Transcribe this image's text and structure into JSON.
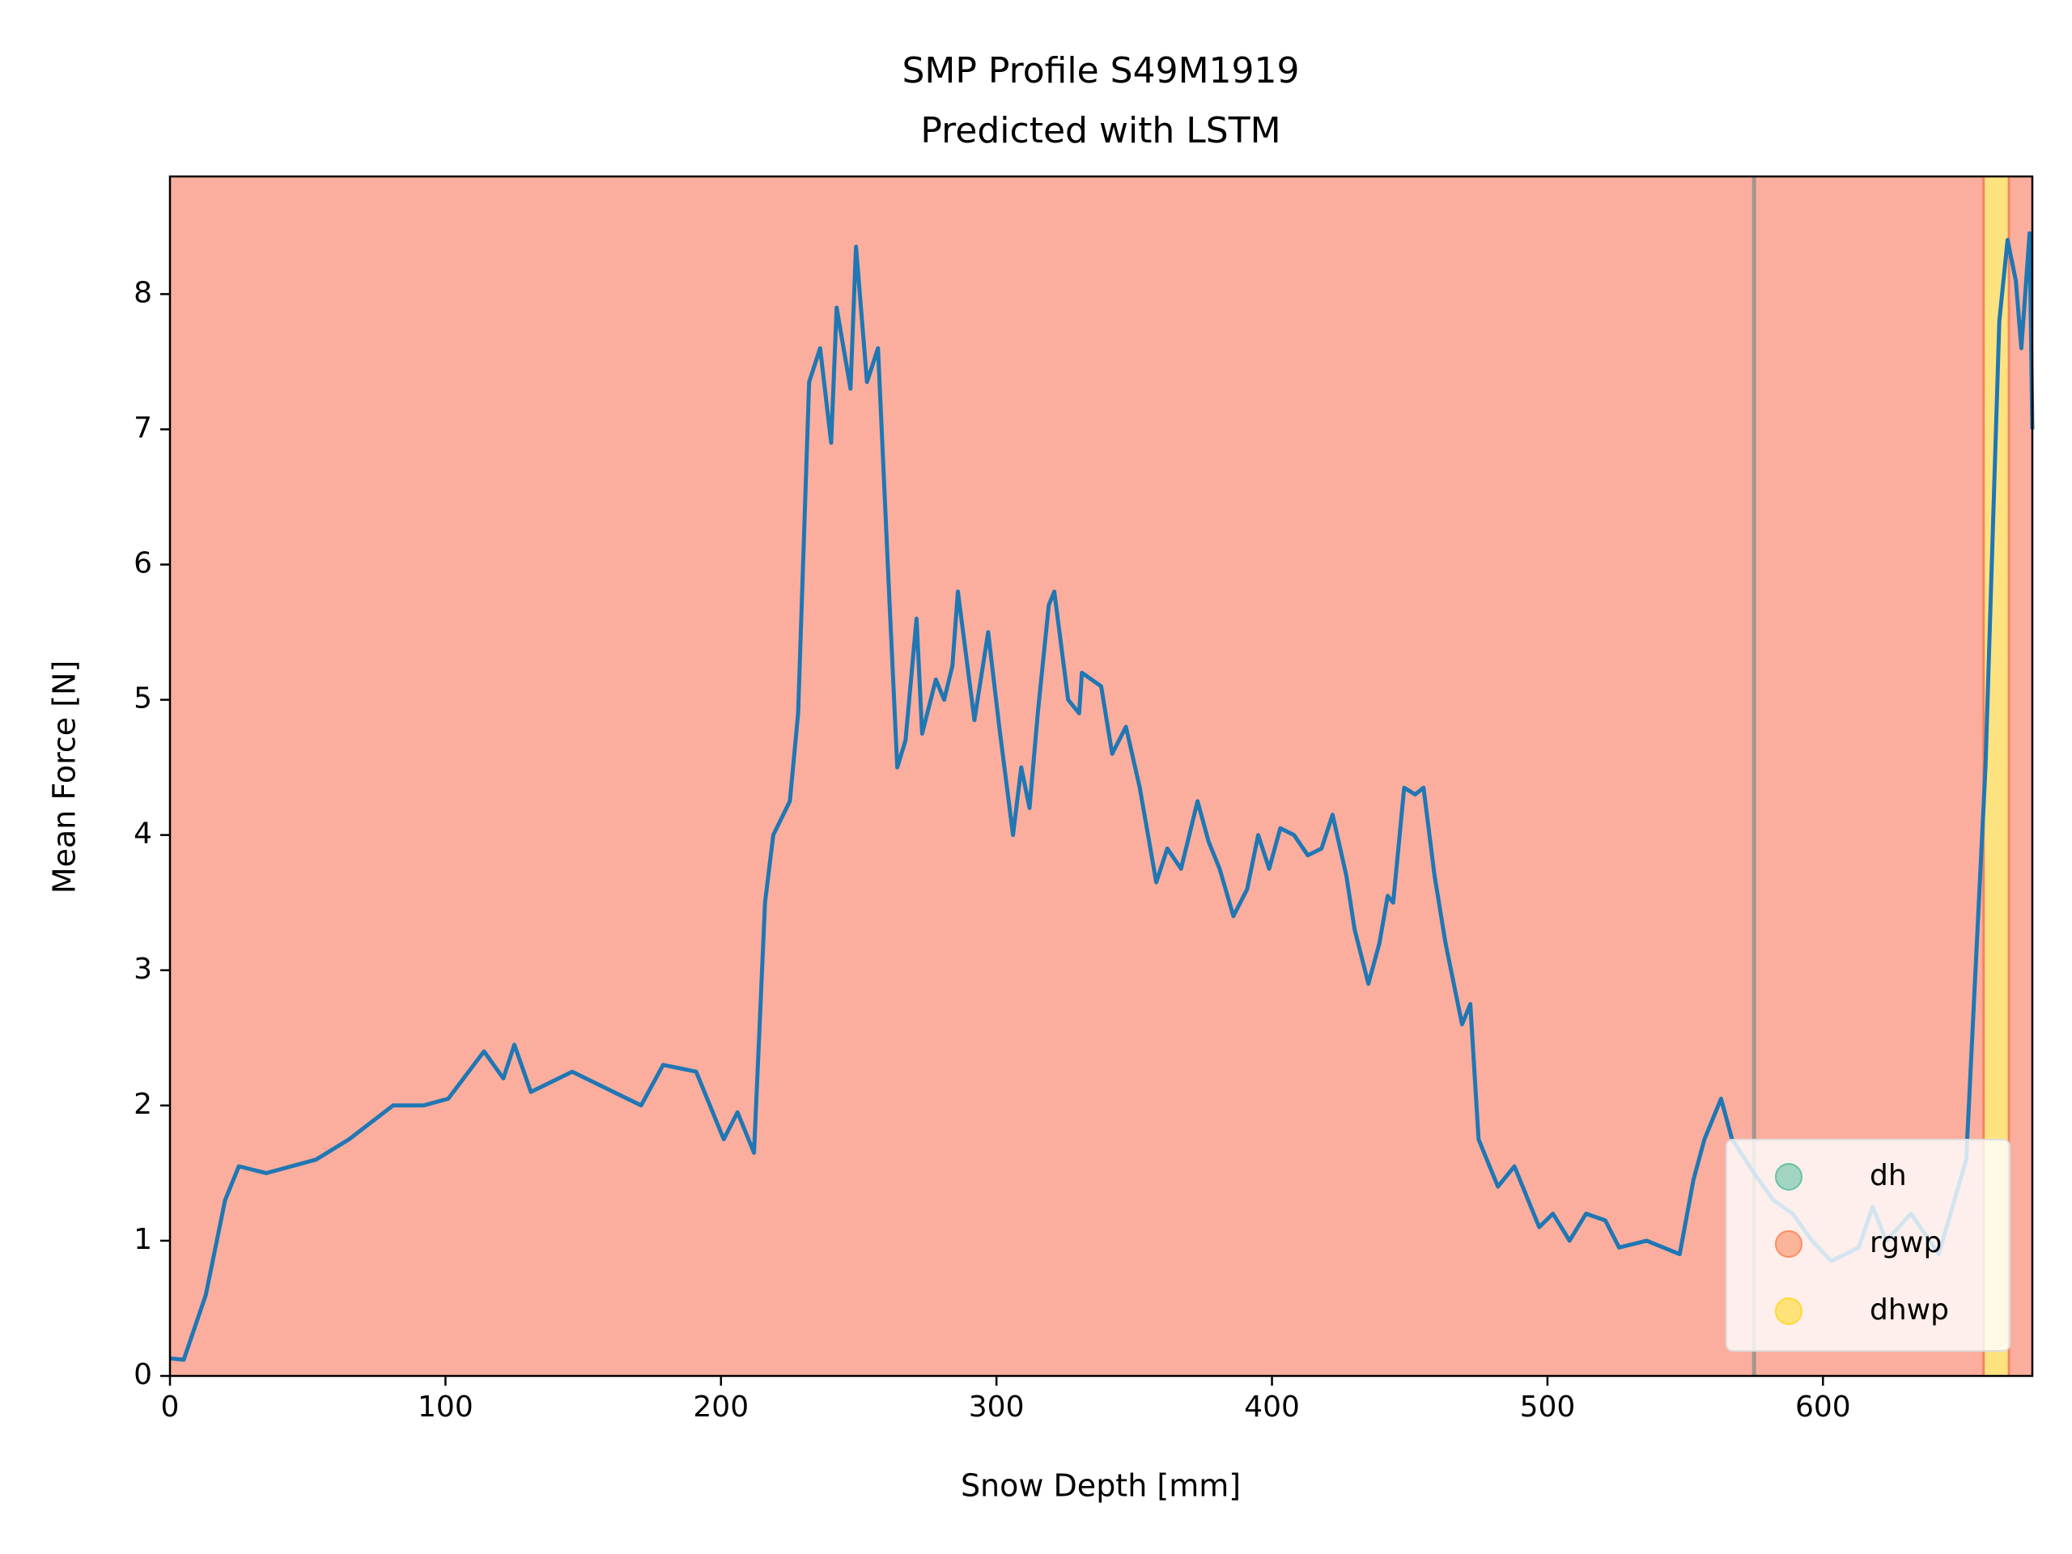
{
  "chart_data": {
    "type": "line",
    "title": [
      "SMP Profile S49M1919",
      "Predicted with LSTM"
    ],
    "xlabel": "Snow Depth [mm]",
    "ylabel": "Mean Force [N]",
    "xlim": [
      0,
      676
    ],
    "ylim": [
      0,
      8.87
    ],
    "xticks": [
      0,
      100,
      200,
      300,
      400,
      500,
      600
    ],
    "yticks": [
      0,
      1,
      2,
      3,
      4,
      5,
      6,
      7,
      8
    ],
    "x": [
      0,
      5,
      13,
      20,
      25,
      35,
      53,
      65,
      81,
      92,
      101,
      114,
      121,
      125,
      131,
      146,
      171,
      179,
      191,
      201,
      206,
      212,
      216,
      219,
      225,
      228,
      232,
      236,
      240,
      242,
      247,
      249,
      253,
      257,
      261,
      264,
      267,
      271,
      273,
      278,
      281,
      284,
      286,
      292,
      297,
      301,
      306,
      309,
      312,
      315,
      319,
      321,
      326,
      330,
      331,
      338,
      342,
      347,
      352,
      358,
      362,
      367,
      373,
      377,
      381,
      386,
      391,
      395,
      399,
      403,
      408,
      413,
      418,
      422,
      427,
      430,
      435,
      439,
      442,
      444,
      448,
      452,
      455,
      459,
      463,
      466,
      469,
      472,
      475,
      478,
      482,
      488,
      493,
      497,
      502,
      508,
      514,
      521,
      526,
      536,
      548,
      553,
      557,
      563,
      567,
      575,
      582,
      589,
      596,
      603,
      613,
      618,
      623,
      632,
      642,
      652,
      659,
      664,
      667,
      670,
      672,
      675,
      676
    ],
    "series": [
      {
        "color": "#1f77b4",
        "values": [
          0.13,
          0.12,
          0.6,
          1.3,
          1.55,
          1.5,
          1.6,
          1.75,
          2.0,
          2.0,
          2.05,
          2.4,
          2.2,
          2.45,
          2.1,
          2.25,
          2.0,
          2.3,
          2.25,
          1.75,
          1.95,
          1.65,
          3.5,
          4.0,
          4.25,
          4.9,
          7.35,
          7.6,
          6.9,
          7.9,
          7.3,
          8.35,
          7.35,
          7.6,
          5.8,
          4.5,
          4.7,
          5.6,
          4.75,
          5.15,
          5.0,
          5.25,
          5.8,
          4.85,
          5.5,
          4.8,
          4.0,
          4.5,
          4.2,
          4.9,
          5.7,
          5.8,
          5.0,
          4.9,
          5.2,
          5.1,
          4.6,
          4.8,
          4.35,
          3.65,
          3.9,
          3.75,
          4.25,
          3.95,
          3.75,
          3.4,
          3.6,
          4.0,
          3.75,
          4.05,
          4.0,
          3.85,
          3.9,
          4.15,
          3.7,
          3.3,
          2.9,
          3.2,
          3.55,
          3.5,
          4.35,
          4.3,
          4.35,
          3.7,
          3.2,
          2.9,
          2.6,
          2.75,
          1.75,
          1.6,
          1.4,
          1.55,
          1.3,
          1.1,
          1.2,
          1.0,
          1.2,
          1.15,
          0.95,
          1.0,
          0.9,
          1.45,
          1.75,
          2.05,
          1.75,
          1.5,
          1.3,
          1.2,
          1.0,
          0.85,
          0.95,
          1.25,
          1.0,
          1.2,
          0.9,
          1.6,
          4.5,
          7.8,
          8.4,
          8.1,
          7.6,
          8.45,
          7.0
        ]
      }
    ],
    "segments": [
      {
        "label": "rgwp",
        "start": 0,
        "end": 658.3,
        "color": "#fcae9e"
      },
      {
        "label": "dhwp",
        "start": 658.3,
        "end": 667.5,
        "color": "#fde380"
      },
      {
        "label": "rgwp",
        "start": 667.5,
        "end": 676,
        "color": "#fcae9e"
      }
    ],
    "vlines": [
      575
    ],
    "legend": {
      "corner": "lower right",
      "entries": [
        {
          "name": "dh",
          "color": "#66c2a5"
        },
        {
          "name": "rgwp",
          "color": "#fc8d62"
        },
        {
          "name": "dhwp",
          "color": "#ffd92f"
        }
      ]
    }
  }
}
